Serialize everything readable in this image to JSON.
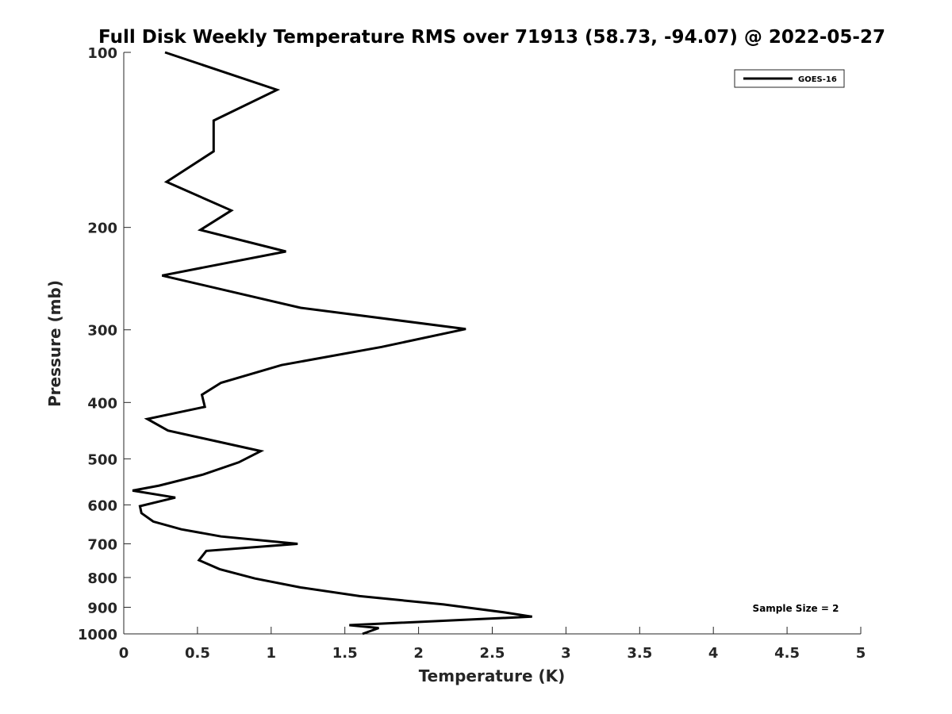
{
  "chart_data": {
    "type": "line",
    "title": "Full Disk Weekly Temperature RMS over 71913 (58.73, -94.07) @ 2022-05-27",
    "xlabel": "Temperature (K)",
    "ylabel": "Pressure (mb)",
    "xlim": [
      0,
      5
    ],
    "ylim": [
      100,
      1000
    ],
    "y_scale": "log",
    "y_reversed": true,
    "x_ticks": [
      "0",
      "0.5",
      "1",
      "1.5",
      "2",
      "2.5",
      "3",
      "3.5",
      "4",
      "4.5",
      "5"
    ],
    "y_ticks": [
      "100",
      "200",
      "300",
      "400",
      "500",
      "600",
      "700",
      "800",
      "900",
      "1000"
    ],
    "grid": false,
    "legend_position": "top-right",
    "series": [
      {
        "name": "GOES-16",
        "color": "#000000",
        "x": [
          0.28,
          1.04,
          0.61,
          0.61,
          0.29,
          0.73,
          0.52,
          1.1,
          0.26,
          1.2,
          2.32,
          1.75,
          1.07,
          0.66,
          0.53,
          0.55,
          0.16,
          0.3,
          0.93,
          0.78,
          0.54,
          0.24,
          0.06,
          0.35,
          0.11,
          0.12,
          0.2,
          0.39,
          0.66,
          1.18,
          0.56,
          0.51,
          0.65,
          0.89,
          1.2,
          1.6,
          2.17,
          2.59,
          2.77,
          1.53,
          1.73,
          1.62
        ],
        "y": [
          100,
          116,
          131,
          148,
          167,
          187,
          202,
          220,
          242,
          275,
          299,
          321,
          345,
          370,
          388,
          407,
          427,
          447,
          485,
          507,
          532,
          556,
          567,
          583,
          603,
          620,
          641,
          661,
          680,
          700,
          720,
          747,
          774,
          803,
          832,
          861,
          890,
          919,
          934,
          966,
          977,
          1000
        ]
      }
    ],
    "annotations": [
      "Sample Size = 2"
    ]
  }
}
